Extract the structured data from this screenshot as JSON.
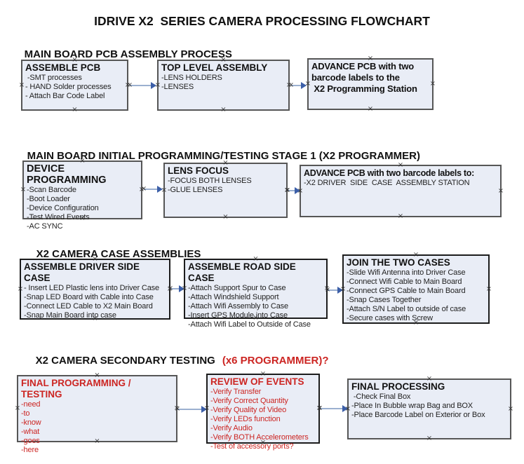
{
  "title": "IDRIVE X2  SERIES CAMERA PROCESSING FLOWCHART",
  "sections": [
    {
      "heading": "MAIN BOARD PCB ASSEMBLY PROCESS"
    },
    {
      "heading": "MAIN BOARD INITIAL PROGRAMMING/TESTING STAGE 1 (X2 PROGRAMMER)"
    },
    {
      "heading": "X2 CAMERA CASE ASSEMBLIES"
    },
    {
      "heading": "X2 CAMERA SECONDARY TESTING",
      "heading_red": "(x6 PROGRAMMER)?"
    }
  ],
  "boxes": {
    "assemble_pcb": {
      "title": "ASSEMBLE PCB",
      "lines": [
        " -SMT processes",
        "- HAND Solder processes",
        "- Attach Bar Code Label"
      ]
    },
    "top_level_assembly": {
      "title": "TOP LEVEL ASSEMBLY",
      "lines": [
        "-LENS HOLDERS",
        "-LENSES"
      ]
    },
    "advance_pcb_1": {
      "title": "ADVANCE PCB with two\nbarcode labels to the\n X2 Programming Station",
      "lines": []
    },
    "device_programming": {
      "title": "DEVICE PROGRAMMING",
      "lines": [
        "-Scan Barcode",
        "-Boot Loader",
        "-Device Configuration",
        "-Test Wired Events",
        "-AC SYNC"
      ]
    },
    "lens_focus": {
      "title": "LENS FOCUS",
      "lines": [
        "-FOCUS BOTH LENSES",
        "-GLUE LENSES"
      ]
    },
    "advance_pcb_2": {
      "title": "ADVANCE PCB with two barcode labels to:",
      "lines": [
        "-X2 DRIVER  SIDE  CASE  ASSEMBLY STATION"
      ]
    },
    "assemble_driver_side": {
      "title": "ASSEMBLE DRIVER SIDE CASE",
      "lines": [
        "- Insert LED Plastic lens into Driver Case",
        "-Snap LED Board with Cable into Case",
        "-Connect LED Cable to X2 Main Board",
        "-Snap Main Board into case"
      ]
    },
    "assemble_road_side": {
      "title": "ASSEMBLE ROAD SIDE CASE",
      "lines": [
        "-Attach Support Spur to Case",
        "-Attach Windshield Support",
        "-Attach Wifi Assembly to Case",
        "-Insert GPS Module into Case",
        "-Attach Wifi Label to Outside of Case"
      ]
    },
    "join_two_cases": {
      "title": "JOIN THE TWO CASES",
      "lines": [
        "-Slide Wifi Antenna into Driver Case",
        "-Connect Wifi Cable to Main Board",
        "-Connect GPS Cable to Main Board",
        "-Snap Cases Together",
        "-Attach S/N Label to outside of case",
        "-Secure cases with Screw"
      ]
    },
    "final_programming": {
      "title": "FINAL PROGRAMMING / TESTING",
      "lines": [
        "-need",
        "-to",
        "-know",
        "-what",
        "-goes",
        "-here"
      ]
    },
    "review_of_events": {
      "title": "REVIEW OF EVENTS",
      "lines": [
        "-Verify Transfer",
        "-Verify Correct Quantity",
        "-Verify Quality of Video",
        "-Verify LEDs function",
        "-Verify Audio",
        "-Verify BOTH Accelerometers",
        "-Test of accessory ports?"
      ]
    },
    "final_processing": {
      "title": "FINAL PROCESSING",
      "lines": [
        " -Check Final Box",
        "-Place In Bubble wrap Bag and BOX",
        "-Place Barcode Label on Exterior or Box"
      ]
    }
  },
  "colors": {
    "box_fill": "#e9edf6",
    "box_border": "#565656",
    "box_border_dark": "#1c1c1c",
    "arrow_line": "#9bb0d0",
    "arrow_head": "#3c5fa8",
    "red_text": "#cc2522"
  },
  "icons": {
    "connection_point": "×"
  }
}
